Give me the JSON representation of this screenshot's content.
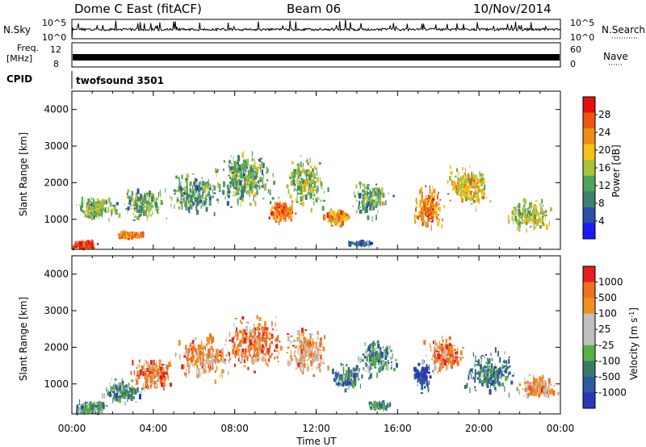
{
  "header": {
    "radar": "Dome C East (fitACF)",
    "beam": "Beam 06",
    "date": "10/Nov/2014"
  },
  "top_panels": {
    "nsky_label": "N.Sky",
    "nsky_ticks": [
      "10^5",
      "10^0"
    ],
    "nsearch_label": "N.Search",
    "nsearch_ticks": [
      "10^5",
      "10^0"
    ],
    "freq_label_1": "Freq.",
    "freq_label_2": "[MHz]",
    "freq_ticks": [
      "12",
      "8"
    ],
    "nave_label": "Nave",
    "nave_ticks": [
      "60",
      "0"
    ],
    "cpid_label": "CPID",
    "cpid_value": "twofsound 3501"
  },
  "axes": {
    "x_ticks": [
      "00:00",
      "04:00",
      "08:00",
      "12:00",
      "16:00",
      "20:00",
      "00:00"
    ],
    "x_label": "Time UT",
    "y_label": "Slant Range [km]",
    "y_ticks": [
      "1000",
      "2000",
      "3000",
      "4000"
    ]
  },
  "colorbars": {
    "power_label": "Power [dB]",
    "power_ticks": [
      "28",
      "24",
      "20",
      "16",
      "12",
      "8",
      "4"
    ],
    "velocity_label": "Velocity [m s",
    "velocity_label_sup": "-1",
    "velocity_label_end": "]",
    "velocity_ticks": [
      "1000",
      "500",
      "100",
      "25",
      "-25",
      "-100",
      "-500",
      "-1000"
    ]
  },
  "colors": {
    "power_scale": [
      "#1a1aff",
      "#2d4fa8",
      "#3f7f6e",
      "#4fa35a",
      "#a8c23a",
      "#f2c21a",
      "#f08c14",
      "#ee5514",
      "#e60f0f"
    ],
    "velocity_scale": [
      "#2a38b8",
      "#2d5aa0",
      "#3a7a6a",
      "#55b045",
      "#bfbfbf",
      "#bfbfbf",
      "#f09020",
      "#f07020",
      "#e51e1e"
    ],
    "trace": "#000000"
  },
  "chart_data": [
    {
      "type": "heatmap",
      "name": "power",
      "xlabel": "Time UT",
      "ylabel": "Slant Range [km]",
      "xlim": [
        0,
        24
      ],
      "ylim": [
        180,
        4500
      ],
      "colorbar": {
        "label": "Power [dB]",
        "range": [
          0,
          32
        ],
        "ticks": [
          4,
          8,
          12,
          16,
          20,
          24,
          28
        ]
      },
      "clusters": [
        {
          "t": 0.6,
          "r": 300,
          "dt": 0.7,
          "dr": 120,
          "level": 0.9,
          "n": 150
        },
        {
          "t": 2.8,
          "r": 560,
          "dt": 0.9,
          "dr": 110,
          "level": 0.75,
          "n": 110
        },
        {
          "t": 1.2,
          "r": 1300,
          "dt": 1.3,
          "dr": 400,
          "level": 0.45,
          "n": 160
        },
        {
          "t": 3.5,
          "r": 1400,
          "dt": 1.3,
          "dr": 500,
          "level": 0.4,
          "n": 160
        },
        {
          "t": 6.0,
          "r": 1700,
          "dt": 1.6,
          "dr": 650,
          "level": 0.35,
          "n": 220
        },
        {
          "t": 8.5,
          "r": 2100,
          "dt": 1.8,
          "dr": 900,
          "level": 0.4,
          "n": 300
        },
        {
          "t": 10.3,
          "r": 1200,
          "dt": 0.8,
          "dr": 350,
          "level": 0.8,
          "n": 130
        },
        {
          "t": 11.5,
          "r": 2000,
          "dt": 1.2,
          "dr": 800,
          "level": 0.45,
          "n": 200
        },
        {
          "t": 13.0,
          "r": 1050,
          "dt": 0.7,
          "dr": 300,
          "level": 0.7,
          "n": 110
        },
        {
          "t": 14.6,
          "r": 1550,
          "dt": 1.2,
          "dr": 600,
          "level": 0.4,
          "n": 150
        },
        {
          "t": 14.2,
          "r": 330,
          "dt": 0.8,
          "dr": 60,
          "level": 0.25,
          "n": 50
        },
        {
          "t": 17.5,
          "r": 1300,
          "dt": 0.9,
          "dr": 700,
          "level": 0.75,
          "n": 180
        },
        {
          "t": 19.5,
          "r": 1900,
          "dt": 1.3,
          "dr": 700,
          "level": 0.6,
          "n": 200
        },
        {
          "t": 22.5,
          "r": 1100,
          "dt": 1.4,
          "dr": 500,
          "level": 0.5,
          "n": 180
        }
      ]
    },
    {
      "type": "heatmap",
      "name": "velocity",
      "xlabel": "Time UT",
      "ylabel": "Slant Range [km]",
      "xlim": [
        0,
        24
      ],
      "ylim": [
        180,
        4500
      ],
      "colorbar": {
        "label": "Velocity [m s-1]",
        "ticks": [
          1000,
          500,
          100,
          25,
          -25,
          -100,
          -500,
          -1000
        ]
      },
      "clusters": [
        {
          "t": 0.8,
          "r": 350,
          "dt": 1.0,
          "dr": 200,
          "level": 0.35,
          "n": 160
        },
        {
          "t": 2.5,
          "r": 800,
          "dt": 1.2,
          "dr": 400,
          "level": 0.3,
          "n": 140
        },
        {
          "t": 4.0,
          "r": 1300,
          "dt": 1.4,
          "dr": 550,
          "level": 0.8,
          "n": 150
        },
        {
          "t": 6.5,
          "r": 1700,
          "dt": 1.8,
          "dr": 700,
          "level": 0.75,
          "n": 230
        },
        {
          "t": 9.0,
          "r": 2100,
          "dt": 1.8,
          "dr": 900,
          "level": 0.8,
          "n": 300
        },
        {
          "t": 11.5,
          "r": 1900,
          "dt": 1.2,
          "dr": 800,
          "level": 0.7,
          "n": 200
        },
        {
          "t": 13.5,
          "r": 1200,
          "dt": 1.0,
          "dr": 500,
          "level": 0.25,
          "n": 130
        },
        {
          "t": 15.0,
          "r": 400,
          "dt": 0.9,
          "dr": 130,
          "level": 0.35,
          "n": 80
        },
        {
          "t": 15.0,
          "r": 1700,
          "dt": 1.2,
          "dr": 600,
          "level": 0.3,
          "n": 150
        },
        {
          "t": 17.2,
          "r": 1200,
          "dt": 0.6,
          "dr": 500,
          "level": 0.08,
          "n": 110
        },
        {
          "t": 18.3,
          "r": 1800,
          "dt": 1.2,
          "dr": 600,
          "level": 0.8,
          "n": 180
        },
        {
          "t": 20.5,
          "r": 1300,
          "dt": 1.5,
          "dr": 700,
          "level": 0.25,
          "n": 200
        },
        {
          "t": 22.8,
          "r": 900,
          "dt": 1.2,
          "dr": 400,
          "level": 0.72,
          "n": 150
        }
      ]
    }
  ]
}
